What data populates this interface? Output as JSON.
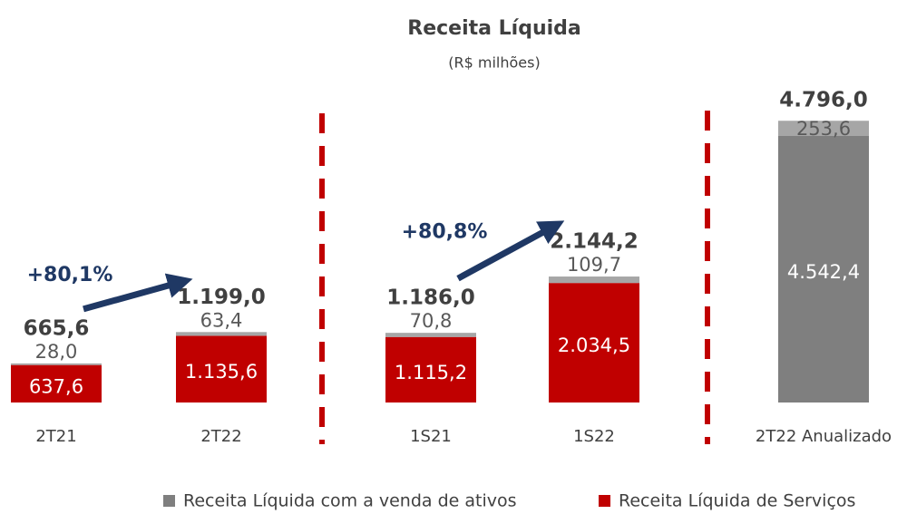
{
  "chart_data": {
    "type": "stacked_bar",
    "title": "Receita Líquida",
    "subtitle": "(R$ milhões)",
    "categories": [
      "2T21",
      "2T22",
      "1S21",
      "1S22",
      "2T22 Anualizado"
    ],
    "series": [
      {
        "name": "Receita Líquida de Serviços",
        "color": "#c00000",
        "colors": [
          "#c00000",
          "#c00000",
          "#c00000",
          "#c00000",
          "#7f7f7f"
        ],
        "values": [
          637.6,
          1135.6,
          1115.2,
          2034.5,
          4542.4
        ],
        "value_labels": [
          "637,6",
          "1.135,6",
          "1.115,2",
          "2.034,5",
          "4.542,4"
        ]
      },
      {
        "name": "Receita Líquida com a venda de ativos",
        "color": "#a6a6a6",
        "values": [
          28.0,
          63.4,
          70.8,
          109.7,
          253.6
        ],
        "value_labels": [
          "28,0",
          "63,4",
          "70,8",
          "109,7",
          "253,6"
        ]
      }
    ],
    "totals": {
      "values": [
        665.6,
        1199.0,
        1186.0,
        2144.2,
        4796.0
      ],
      "value_labels": [
        "665,6",
        "1.199,0",
        "1.186,0",
        "2.144,2",
        "4.796,0"
      ]
    },
    "annotations": [
      "+80,1%",
      "+80,8%"
    ],
    "ylim": [
      0,
      5000
    ]
  }
}
